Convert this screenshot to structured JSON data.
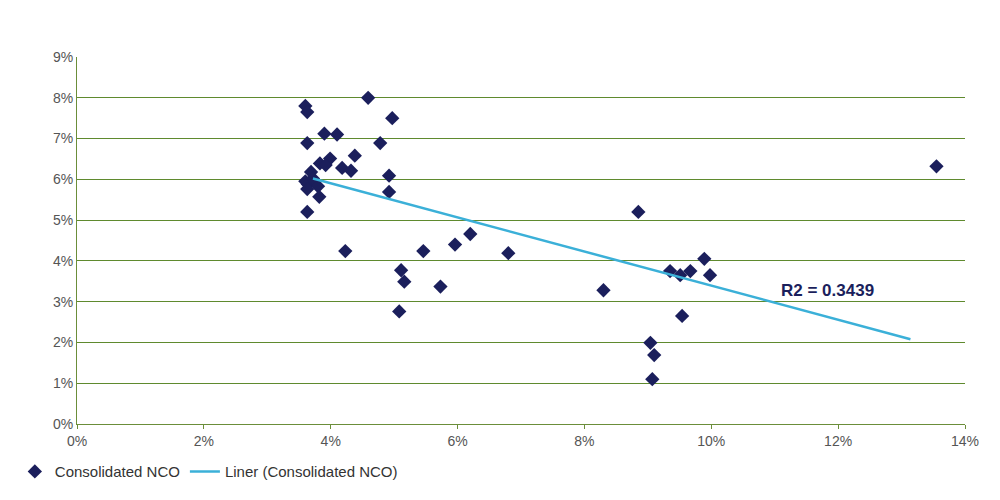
{
  "chart_data": {
    "type": "scatter",
    "annotations": [
      "R2 = 0.3439"
    ],
    "series": [
      {
        "name": "Consolidated NCO",
        "type": "scatter",
        "marker": "diamond",
        "color": "#1b1f5c",
        "x": [
          3.6,
          3.63,
          4.59,
          4.97,
          3.9,
          4.1,
          3.63,
          4.78,
          4.38,
          3.99,
          3.83,
          3.92,
          4.18,
          4.32,
          3.69,
          4.92,
          3.6,
          3.64,
          3.72,
          3.8,
          3.63,
          3.82,
          4.92,
          3.63,
          4.23,
          5.11,
          5.16,
          5.08,
          5.46,
          5.96,
          6.2,
          5.73,
          6.8,
          8.3,
          8.85,
          9.35,
          9.51,
          9.67,
          9.89,
          9.98,
          9.54,
          9.04,
          9.1,
          9.07,
          13.55
        ],
        "values": [
          7.8,
          7.65,
          8.0,
          7.5,
          7.12,
          7.1,
          6.89,
          6.89,
          6.58,
          6.51,
          6.39,
          6.35,
          6.28,
          6.21,
          6.18,
          6.09,
          5.95,
          5.88,
          6.02,
          5.83,
          5.76,
          5.57,
          5.69,
          5.2,
          4.24,
          3.77,
          3.49,
          2.76,
          4.24,
          4.4,
          4.66,
          3.37,
          4.19,
          3.28,
          5.2,
          3.75,
          3.65,
          3.75,
          4.05,
          3.65,
          2.65,
          1.99,
          1.69,
          1.1,
          6.32
        ]
      },
      {
        "name": "Liner (Consolidated NCO)",
        "type": "line",
        "line_style": "solid",
        "color": "#3bb0d8",
        "x": [
          3.72,
          13.14
        ],
        "values": [
          6.02,
          2.08
        ]
      }
    ],
    "xlim": [
      0,
      14
    ],
    "xticks": [
      {
        "value": 0,
        "label": "0%"
      },
      {
        "value": 2,
        "label": "2%"
      },
      {
        "value": 4,
        "label": "4%"
      },
      {
        "value": 6,
        "label": "6%"
      },
      {
        "value": 8,
        "label": "8%"
      },
      {
        "value": 10,
        "label": "10%"
      },
      {
        "value": 12,
        "label": "12%"
      },
      {
        "value": 14,
        "label": "14%"
      }
    ],
    "ylim": [
      0,
      9
    ],
    "yticks": [
      {
        "value": 0,
        "label": "0%"
      },
      {
        "value": 1,
        "label": "1%"
      },
      {
        "value": 2,
        "label": "2%"
      },
      {
        "value": 3,
        "label": "3%"
      },
      {
        "value": 4,
        "label": "4%"
      },
      {
        "value": 5,
        "label": "5%"
      },
      {
        "value": 6,
        "label": "6%"
      },
      {
        "value": 7,
        "label": "7%"
      },
      {
        "value": 8,
        "label": "8%"
      },
      {
        "value": 9,
        "label": "9%"
      }
    ],
    "grid": true,
    "legend": "bottom left"
  }
}
